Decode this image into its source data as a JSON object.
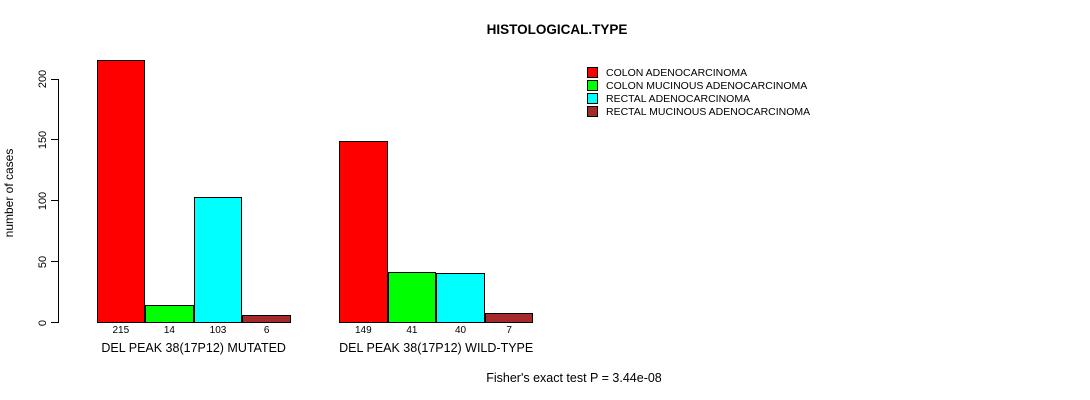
{
  "title": "HISTOLOGICAL.TYPE",
  "ylabel": "number of cases",
  "footer": "Fisher's exact test P = 3.44e-08",
  "legend": [
    {
      "label": "COLON ADENOCARCINOMA",
      "color": "#FF0000"
    },
    {
      "label": "COLON MUCINOUS ADENOCARCINOMA",
      "color": "#00FF00"
    },
    {
      "label": "RECTAL ADENOCARCINOMA",
      "color": "#00FFFF"
    },
    {
      "label": "RECTAL MUCINOUS ADENOCARCINOMA",
      "color": "#A52A2A"
    }
  ],
  "chart_data": {
    "type": "bar",
    "title": "HISTOLOGICAL.TYPE",
    "xlabel": "",
    "ylabel": "number of cases",
    "ylim": [
      0,
      200
    ],
    "yticks": [
      0,
      50,
      100,
      150,
      200
    ],
    "grid": false,
    "legend_position": "top-right",
    "categories": [
      "DEL PEAK 38(17P12) MUTATED",
      "DEL PEAK 38(17P12) WILD-TYPE"
    ],
    "series": [
      {
        "name": "COLON ADENOCARCINOMA",
        "color": "#FF0000",
        "values": [
          215,
          149
        ]
      },
      {
        "name": "COLON MUCINOUS ADENOCARCINOMA",
        "color": "#00FF00",
        "values": [
          14,
          41
        ]
      },
      {
        "name": "RECTAL ADENOCARCINOMA",
        "color": "#00FFFF",
        "values": [
          103,
          40
        ]
      },
      {
        "name": "RECTAL MUCINOUS ADENOCARCINOMA",
        "color": "#A52A2A",
        "values": [
          6,
          7
        ]
      }
    ],
    "bar_value_labels": [
      [
        215,
        14,
        103,
        6
      ],
      [
        149,
        41,
        40,
        7
      ]
    ],
    "annotation": "Fisher's exact test P = 3.44e-08"
  }
}
